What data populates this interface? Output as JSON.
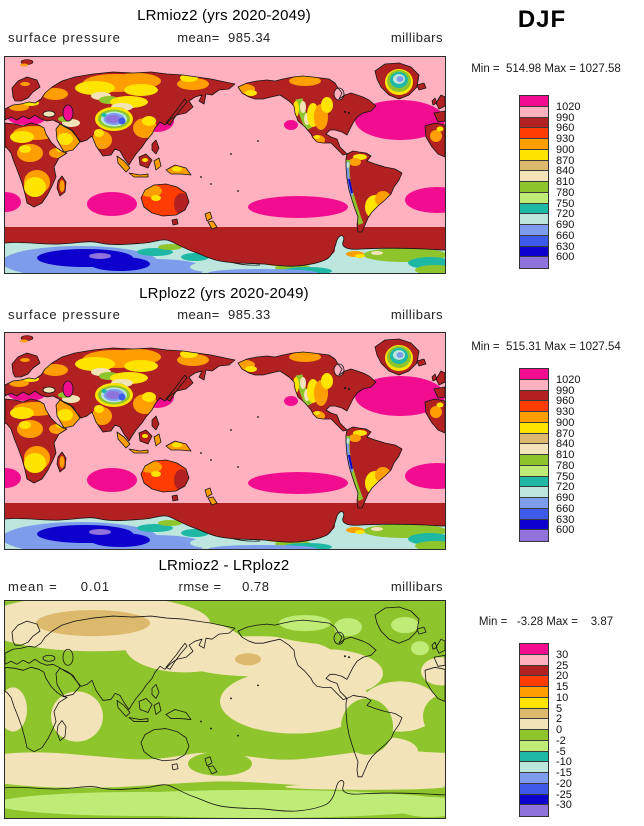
{
  "season_label": "DJF",
  "palette_top_to_bottom": [
    "#F20D90",
    "#FFB1C0",
    "#B22121",
    "#FF3D00",
    "#FF9E00",
    "#FFE400",
    "#DDB96E",
    "#F3E3B8",
    "#8EC42C",
    "#BFEC76",
    "#1FB8A5",
    "#BCE6DE",
    "#7D9CEC",
    "#3D5BE8",
    "#0E00CC",
    "#8F72DB"
  ],
  "map_colors": {
    "ocean_pink": "#FFB1C0",
    "high_pressure_magenta": "#F20D90",
    "land_dark_red": "#B22121",
    "diff_background_green": "#8EC42C",
    "diff_positive_beige": "#F3E3B8",
    "diff_positive_tan": "#DDB96E",
    "diff_negative_light_green": "#BFEC76",
    "coastline": "#151515"
  },
  "panels": [
    {
      "title": "LRmioz2 (yrs 2020-2049)",
      "left_label": "surface  pressure",
      "center_label": "mean=  985.34",
      "right_label": "millibars",
      "minmax": "Min =  514.98 Max = 1027.58",
      "levels": [
        "1020",
        "990",
        "960",
        "930",
        "900",
        "870",
        "840",
        "810",
        "780",
        "750",
        "720",
        "690",
        "660",
        "630",
        "600"
      ]
    },
    {
      "title": "LRploz2 (yrs 2020-2049)",
      "left_label": "surface  pressure",
      "center_label": "mean=  985.33",
      "right_label": "millibars",
      "minmax": "Min =  515.31 Max = 1027.54",
      "levels": [
        "1020",
        "990",
        "960",
        "930",
        "900",
        "870",
        "840",
        "810",
        "780",
        "750",
        "720",
        "690",
        "660",
        "630",
        "600"
      ]
    },
    {
      "title": "LRmioz2 - LRploz2",
      "left_label": "mean =     0.01",
      "center_label": "rmse =     0.78",
      "right_label": "millibars",
      "minmax": "Min =   -3.28 Max =    3.87",
      "levels": [
        "30",
        "25",
        "20",
        "15",
        "10",
        "5",
        "2",
        "0",
        "-2",
        "-5",
        "-10",
        "-15",
        "-20",
        "-25",
        "-30"
      ]
    }
  ],
  "chart_data": [
    {
      "type": "heatmap",
      "subtype": "filled-contour world map, cylindrical equidistant, Pacific-centered",
      "title": "LRmioz2 (yrs 2020-2049)",
      "variable": "surface pressure",
      "units": "millibars",
      "season": "DJF",
      "mean": 985.34,
      "min": 514.98,
      "max": 1027.58,
      "contour_levels_low_to_high": [
        600,
        630,
        660,
        690,
        720,
        750,
        780,
        810,
        840,
        870,
        900,
        930,
        960,
        990,
        1020
      ],
      "palette_low_to_high": [
        "#8F72DB",
        "#0E00CC",
        "#3D5BE8",
        "#7D9CEC",
        "#BCE6DE",
        "#1FB8A5",
        "#BFEC76",
        "#8EC42C",
        "#F3E3B8",
        "#DDB96E",
        "#FFE400",
        "#FF9E00",
        "#FF3D00",
        "#B22121",
        "#FFB1C0",
        "#F20D90"
      ],
      "notes": "Oceans mostly 990-1020 (light pink); subtropical highs >1020 (magenta); circum-Antarctic belt 960-990 (dark red); Antarctic plateau 600-750 (blues/purple); Tibet and Greenland interiors low (blue/purple, teal)."
    },
    {
      "type": "heatmap",
      "subtype": "filled-contour world map, cylindrical equidistant, Pacific-centered",
      "title": "LRploz2 (yrs 2020-2049)",
      "variable": "surface pressure",
      "units": "millibars",
      "season": "DJF",
      "mean": 985.33,
      "min": 515.31,
      "max": 1027.54,
      "contour_levels_low_to_high": [
        600,
        630,
        660,
        690,
        720,
        750,
        780,
        810,
        840,
        870,
        900,
        930,
        960,
        990,
        1020
      ],
      "palette_low_to_high": [
        "#8F72DB",
        "#0E00CC",
        "#3D5BE8",
        "#7D9CEC",
        "#BCE6DE",
        "#1FB8A5",
        "#BFEC76",
        "#8EC42C",
        "#F3E3B8",
        "#DDB96E",
        "#FFE400",
        "#FF9E00",
        "#FF3D00",
        "#B22121",
        "#FFB1C0",
        "#F20D90"
      ],
      "notes": "Visually nearly identical to LRmioz2 panel."
    },
    {
      "type": "heatmap",
      "subtype": "filled-contour difference map, cylindrical equidistant, Pacific-centered",
      "title": "LRmioz2 - LRploz2",
      "variable": "surface pressure difference",
      "units": "millibars",
      "season": "DJF",
      "mean": 0.01,
      "rmse": 0.78,
      "min": -3.28,
      "max": 3.87,
      "contour_levels_low_to_high": [
        -30,
        -25,
        -20,
        -15,
        -10,
        -5,
        -2,
        0,
        2,
        5,
        10,
        15,
        20,
        25,
        30
      ],
      "palette_low_to_high": [
        "#8F72DB",
        "#0E00CC",
        "#3D5BE8",
        "#7D9CEC",
        "#BCE6DE",
        "#1FB8A5",
        "#BFEC76",
        "#8EC42C",
        "#F3E3B8",
        "#DDB96E",
        "#FFE400",
        "#FF9E00",
        "#FF3D00",
        "#B22121",
        "#FFB1C0",
        "#F20D90"
      ],
      "notes": "Mostly -2..0 (olive green) and 0..2 (beige); 2..5 (tan) over Siberia and N Pacific spot; -2..-5 (light green) over Antarctica, Arctic Canada, Greenland."
    }
  ]
}
